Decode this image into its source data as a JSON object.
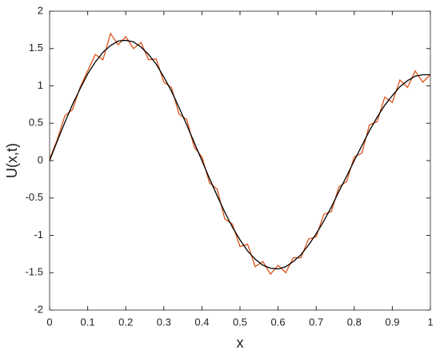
{
  "chart_data": {
    "type": "line",
    "x_label": "x",
    "y_label": "U(x,t)",
    "x": [
      0,
      0.02,
      0.04,
      0.06,
      0.08,
      0.1,
      0.12,
      0.14,
      0.16,
      0.18,
      0.2,
      0.22,
      0.24,
      0.26,
      0.28,
      0.3,
      0.32,
      0.34,
      0.36,
      0.38,
      0.4,
      0.42,
      0.44,
      0.46,
      0.48,
      0.5,
      0.52,
      0.54,
      0.56,
      0.58,
      0.6,
      0.62,
      0.64,
      0.66,
      0.68,
      0.7,
      0.72,
      0.74,
      0.76,
      0.78,
      0.8,
      0.82,
      0.84,
      0.86,
      0.88,
      0.9,
      0.92,
      0.94,
      0.96,
      0.98,
      1
    ],
    "series": [
      {
        "color": "#d95319",
        "values": [
          0.02,
          0.28,
          0.6,
          0.68,
          0.98,
          1.2,
          1.42,
          1.35,
          1.7,
          1.55,
          1.66,
          1.5,
          1.58,
          1.35,
          1.36,
          1.05,
          0.98,
          0.62,
          0.55,
          0.18,
          0.05,
          -0.3,
          -0.38,
          -0.78,
          -0.85,
          -1.15,
          -1.12,
          -1.42,
          -1.35,
          -1.52,
          -1.4,
          -1.5,
          -1.3,
          -1.3,
          -1.05,
          -1.02,
          -0.72,
          -0.68,
          -0.35,
          -0.28,
          0.05,
          0.1,
          0.48,
          0.52,
          0.85,
          0.78,
          1.08,
          0.98,
          1.2,
          1.05,
          1.15
        ]
      },
      {
        "color": "#000000",
        "values": [
          0,
          0.26,
          0.51,
          0.75,
          0.96,
          1.16,
          1.32,
          1.45,
          1.54,
          1.6,
          1.61,
          1.59,
          1.52,
          1.42,
          1.29,
          1.12,
          0.93,
          0.71,
          0.48,
          0.24,
          0,
          -0.24,
          -0.47,
          -0.69,
          -0.89,
          -1.06,
          -1.21,
          -1.32,
          -1.4,
          -1.44,
          -1.45,
          -1.42,
          -1.35,
          -1.26,
          -1.13,
          -0.98,
          -0.81,
          -0.62,
          -0.41,
          -0.21,
          0,
          0.2,
          0.4,
          0.58,
          0.74,
          0.87,
          0.99,
          1.07,
          1.13,
          1.15,
          1.15
        ]
      }
    ],
    "xlim": [
      0,
      1
    ],
    "ylim": [
      -2,
      2
    ],
    "xticks": [
      0,
      0.1,
      0.2,
      0.3,
      0.4,
      0.5,
      0.6,
      0.7,
      0.8,
      0.9,
      1
    ],
    "yticks": [
      -2,
      -1.5,
      -1,
      -0.5,
      0,
      0.5,
      1,
      1.5,
      2
    ],
    "grid": false
  }
}
